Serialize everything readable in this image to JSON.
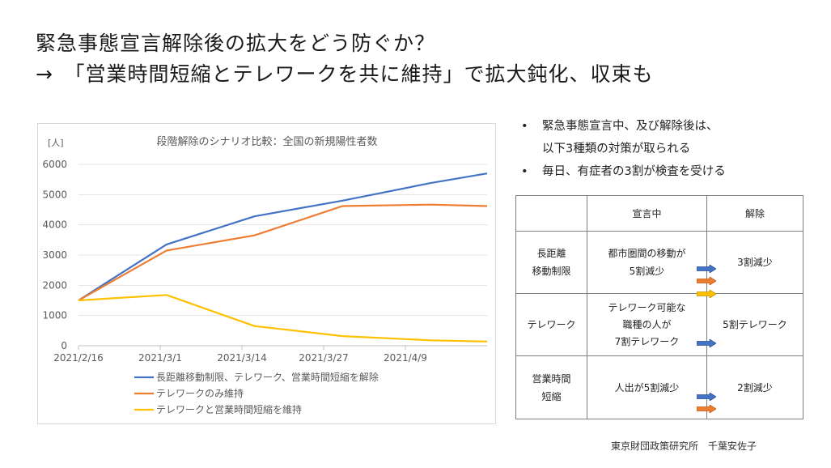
{
  "slide": {
    "title_line1": "緊急事態宣言解除後の拡大をどう防ぐか？",
    "title_line2": "→　「営業時間短縮とテレワークを共に維持」で拡大鈍化、収束も",
    "footer": "東京財団政策研究所　千葉安佐子"
  },
  "bullets": {
    "marker": "•",
    "b1_line1": "緊急事態宣言中、及び解除後は、",
    "b1_line2": "以下3種類の対策が取られる",
    "b2": "毎日、有症者の3割が検査を受ける"
  },
  "table": {
    "header_during": "宣言中",
    "header_after": "解除",
    "rows": [
      {
        "label_l1": "長距離",
        "label_l2": "移動制限",
        "during_l1": "都市圏間の移動が",
        "during_l2": "5割減少",
        "after": "3割減少"
      },
      {
        "label_l1": "テレワーク",
        "during_l1": "テレワーク可能な",
        "during_l2": "職種の人が",
        "during_l3": "7割テレワーク",
        "after": "5割テレワーク"
      },
      {
        "label_l1": "営業時間",
        "label_l2": "短縮",
        "during_l1": "人出が5割減少",
        "after": "2割減少"
      }
    ]
  },
  "colors": {
    "blue": "#4472C4",
    "orange": "#ED7D31",
    "yellow": "#FFC000"
  },
  "chart_data": {
    "type": "line",
    "title": "段階解除のシナリオ比較：全国の新規陽性者数",
    "ylabel": "[人]",
    "ylim": [
      0,
      6000
    ],
    "yticks": [
      0,
      1000,
      2000,
      3000,
      4000,
      5000,
      6000
    ],
    "xlim": [
      "2021-02-16",
      "2021-04-22"
    ],
    "xticks": [
      "2021/2/16",
      "2021/3/1",
      "2021/3/14",
      "2021/3/27",
      "2021/4/9"
    ],
    "x": [
      "2021-02-16",
      "2021-03-02",
      "2021-03-16",
      "2021-03-30",
      "2021-04-13",
      "2021-04-22"
    ],
    "series": [
      {
        "name": "長距離移動制限、テレワーク、営業時間短縮を解除",
        "color": "#4472C4",
        "values": [
          1500,
          3350,
          4280,
          4800,
          5380,
          5700
        ]
      },
      {
        "name": "テレワークのみ維持",
        "color": "#ED7D31",
        "values": [
          1500,
          3150,
          3650,
          4620,
          4670,
          4620
        ]
      },
      {
        "name": "テレワークと営業時間短縮を維持",
        "color": "#FFC000",
        "values": [
          1500,
          1680,
          650,
          320,
          180,
          140
        ]
      }
    ],
    "grid": true,
    "legend": "bottom"
  }
}
